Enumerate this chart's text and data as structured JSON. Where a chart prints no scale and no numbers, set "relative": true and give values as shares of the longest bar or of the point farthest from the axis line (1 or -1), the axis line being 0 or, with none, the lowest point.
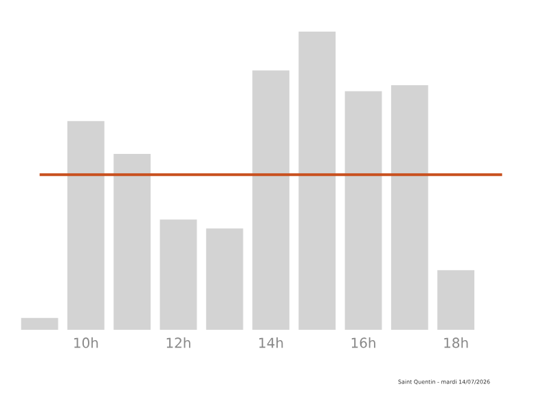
{
  "chart_data": {
    "type": "bar",
    "relative": true,
    "categories": [
      null,
      "10h",
      null,
      "12h",
      null,
      "14h",
      null,
      "16h",
      null,
      "18h",
      null
    ],
    "values": [
      0.04,
      0.7,
      0.59,
      0.37,
      0.34,
      0.87,
      1,
      0.8,
      0.82,
      0.2,
      0
    ],
    "color": "#d3d3d3",
    "ref_lines": [
      {
        "axis": "y",
        "value": 0.52,
        "color": "#c8501e"
      }
    ],
    "annotations": [
      "Saint Quentin - mardi 14/07/2026"
    ]
  }
}
